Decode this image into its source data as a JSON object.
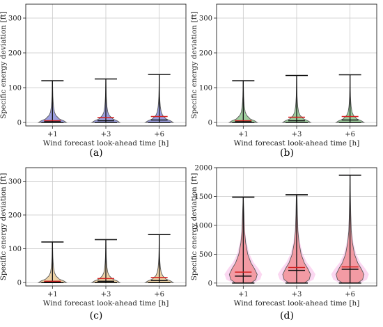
{
  "figure": {
    "captions": [
      "(a)",
      "(b)",
      "(c)",
      "(d)"
    ]
  },
  "chart_data": [
    {
      "type": "violin",
      "panel": "(a)",
      "xlabel": "Wind forecast look-ahead time [h]",
      "ylabel": "Specific energy deviation [ft]",
      "categories": [
        "+1",
        "+3",
        "+6"
      ],
      "ylim": [
        -10,
        340
      ],
      "yticks": [
        0,
        100,
        200,
        300
      ],
      "grid": true,
      "fill_color": "#7b7fd6",
      "max": [
        120,
        125,
        138
      ],
      "min": [
        0,
        0,
        0
      ],
      "mean": [
        5,
        14,
        17
      ],
      "median": [
        2,
        5,
        7
      ],
      "density_profile": {
        "y": [
          0,
          5,
          10,
          20,
          30,
          45,
          60,
          75,
          100,
          140
        ],
        "width": [
          1.0,
          0.8,
          0.5,
          0.25,
          0.14,
          0.08,
          0.05,
          0.03,
          0.015,
          0.005
        ]
      }
    },
    {
      "type": "violin",
      "panel": "(b)",
      "xlabel": "Wind forecast look-ahead time [h]",
      "ylabel": "Specific energy deviation [ft]",
      "categories": [
        "+1",
        "+3",
        "+6"
      ],
      "ylim": [
        -10,
        340
      ],
      "yticks": [
        0,
        100,
        200,
        300
      ],
      "grid": true,
      "fill_color": "#7fbf7f",
      "max": [
        120,
        135,
        137
      ],
      "min": [
        0,
        0,
        0
      ],
      "mean": [
        5,
        15,
        17
      ],
      "median": [
        2,
        5,
        7
      ],
      "density_profile": {
        "y": [
          0,
          5,
          10,
          20,
          30,
          45,
          60,
          75,
          100,
          140
        ],
        "width": [
          1.0,
          0.8,
          0.5,
          0.25,
          0.14,
          0.08,
          0.05,
          0.03,
          0.015,
          0.005
        ]
      }
    },
    {
      "type": "violin",
      "panel": "(c)",
      "xlabel": "Wind forecast look-ahead time [h]",
      "ylabel": "Specific energy deviation [ft]",
      "categories": [
        "+1",
        "+3",
        "+6"
      ],
      "ylim": [
        -10,
        340
      ],
      "yticks": [
        0,
        100,
        200,
        300
      ],
      "grid": true,
      "fill_color": "#e8c48a",
      "max": [
        120,
        127,
        142
      ],
      "min": [
        0,
        0,
        0
      ],
      "mean": [
        4,
        12,
        15
      ],
      "median": [
        1,
        4,
        6
      ],
      "density_profile": {
        "y": [
          0,
          5,
          10,
          20,
          30,
          45,
          60,
          75,
          100,
          140
        ],
        "width": [
          1.0,
          0.8,
          0.5,
          0.25,
          0.14,
          0.08,
          0.05,
          0.03,
          0.015,
          0.005
        ]
      }
    },
    {
      "type": "violin",
      "panel": "(d)",
      "xlabel": "Wind forecast look-ahead time [h]",
      "ylabel": "Specific energy deviation [ft]",
      "categories": [
        "+1",
        "+3",
        "+6"
      ],
      "ylim": [
        -50,
        2000
      ],
      "yticks": [
        0,
        500,
        1000,
        1500,
        2000
      ],
      "grid": true,
      "fill_color": "#f0878a",
      "halo_color": "#f7b6e6",
      "max": [
        1490,
        1530,
        1870
      ],
      "min": [
        0,
        0,
        0
      ],
      "mean": [
        190,
        270,
        280
      ],
      "median": [
        120,
        220,
        240
      ],
      "density_profile": {
        "y": [
          0,
          60,
          150,
          250,
          350,
          500,
          700,
          900,
          1200,
          1500,
          1900
        ],
        "width": [
          0.55,
          0.9,
          1.0,
          0.8,
          0.55,
          0.32,
          0.17,
          0.09,
          0.05,
          0.025,
          0.01
        ]
      }
    }
  ]
}
